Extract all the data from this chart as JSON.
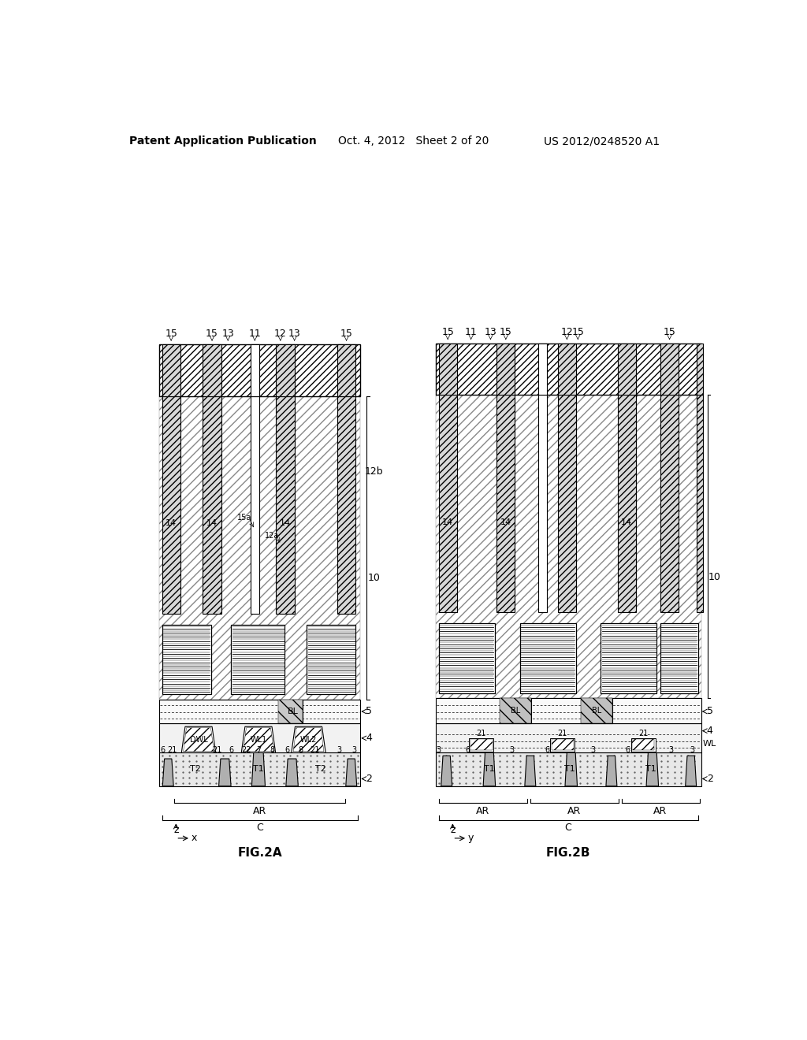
{
  "header_left": "Patent Application Publication",
  "header_mid": "Oct. 4, 2012   Sheet 2 of 20",
  "header_right": "US 2012/0248520 A1",
  "fig2a_title": "FIG.2A",
  "fig2b_title": "FIG.2B",
  "background": "#ffffff"
}
